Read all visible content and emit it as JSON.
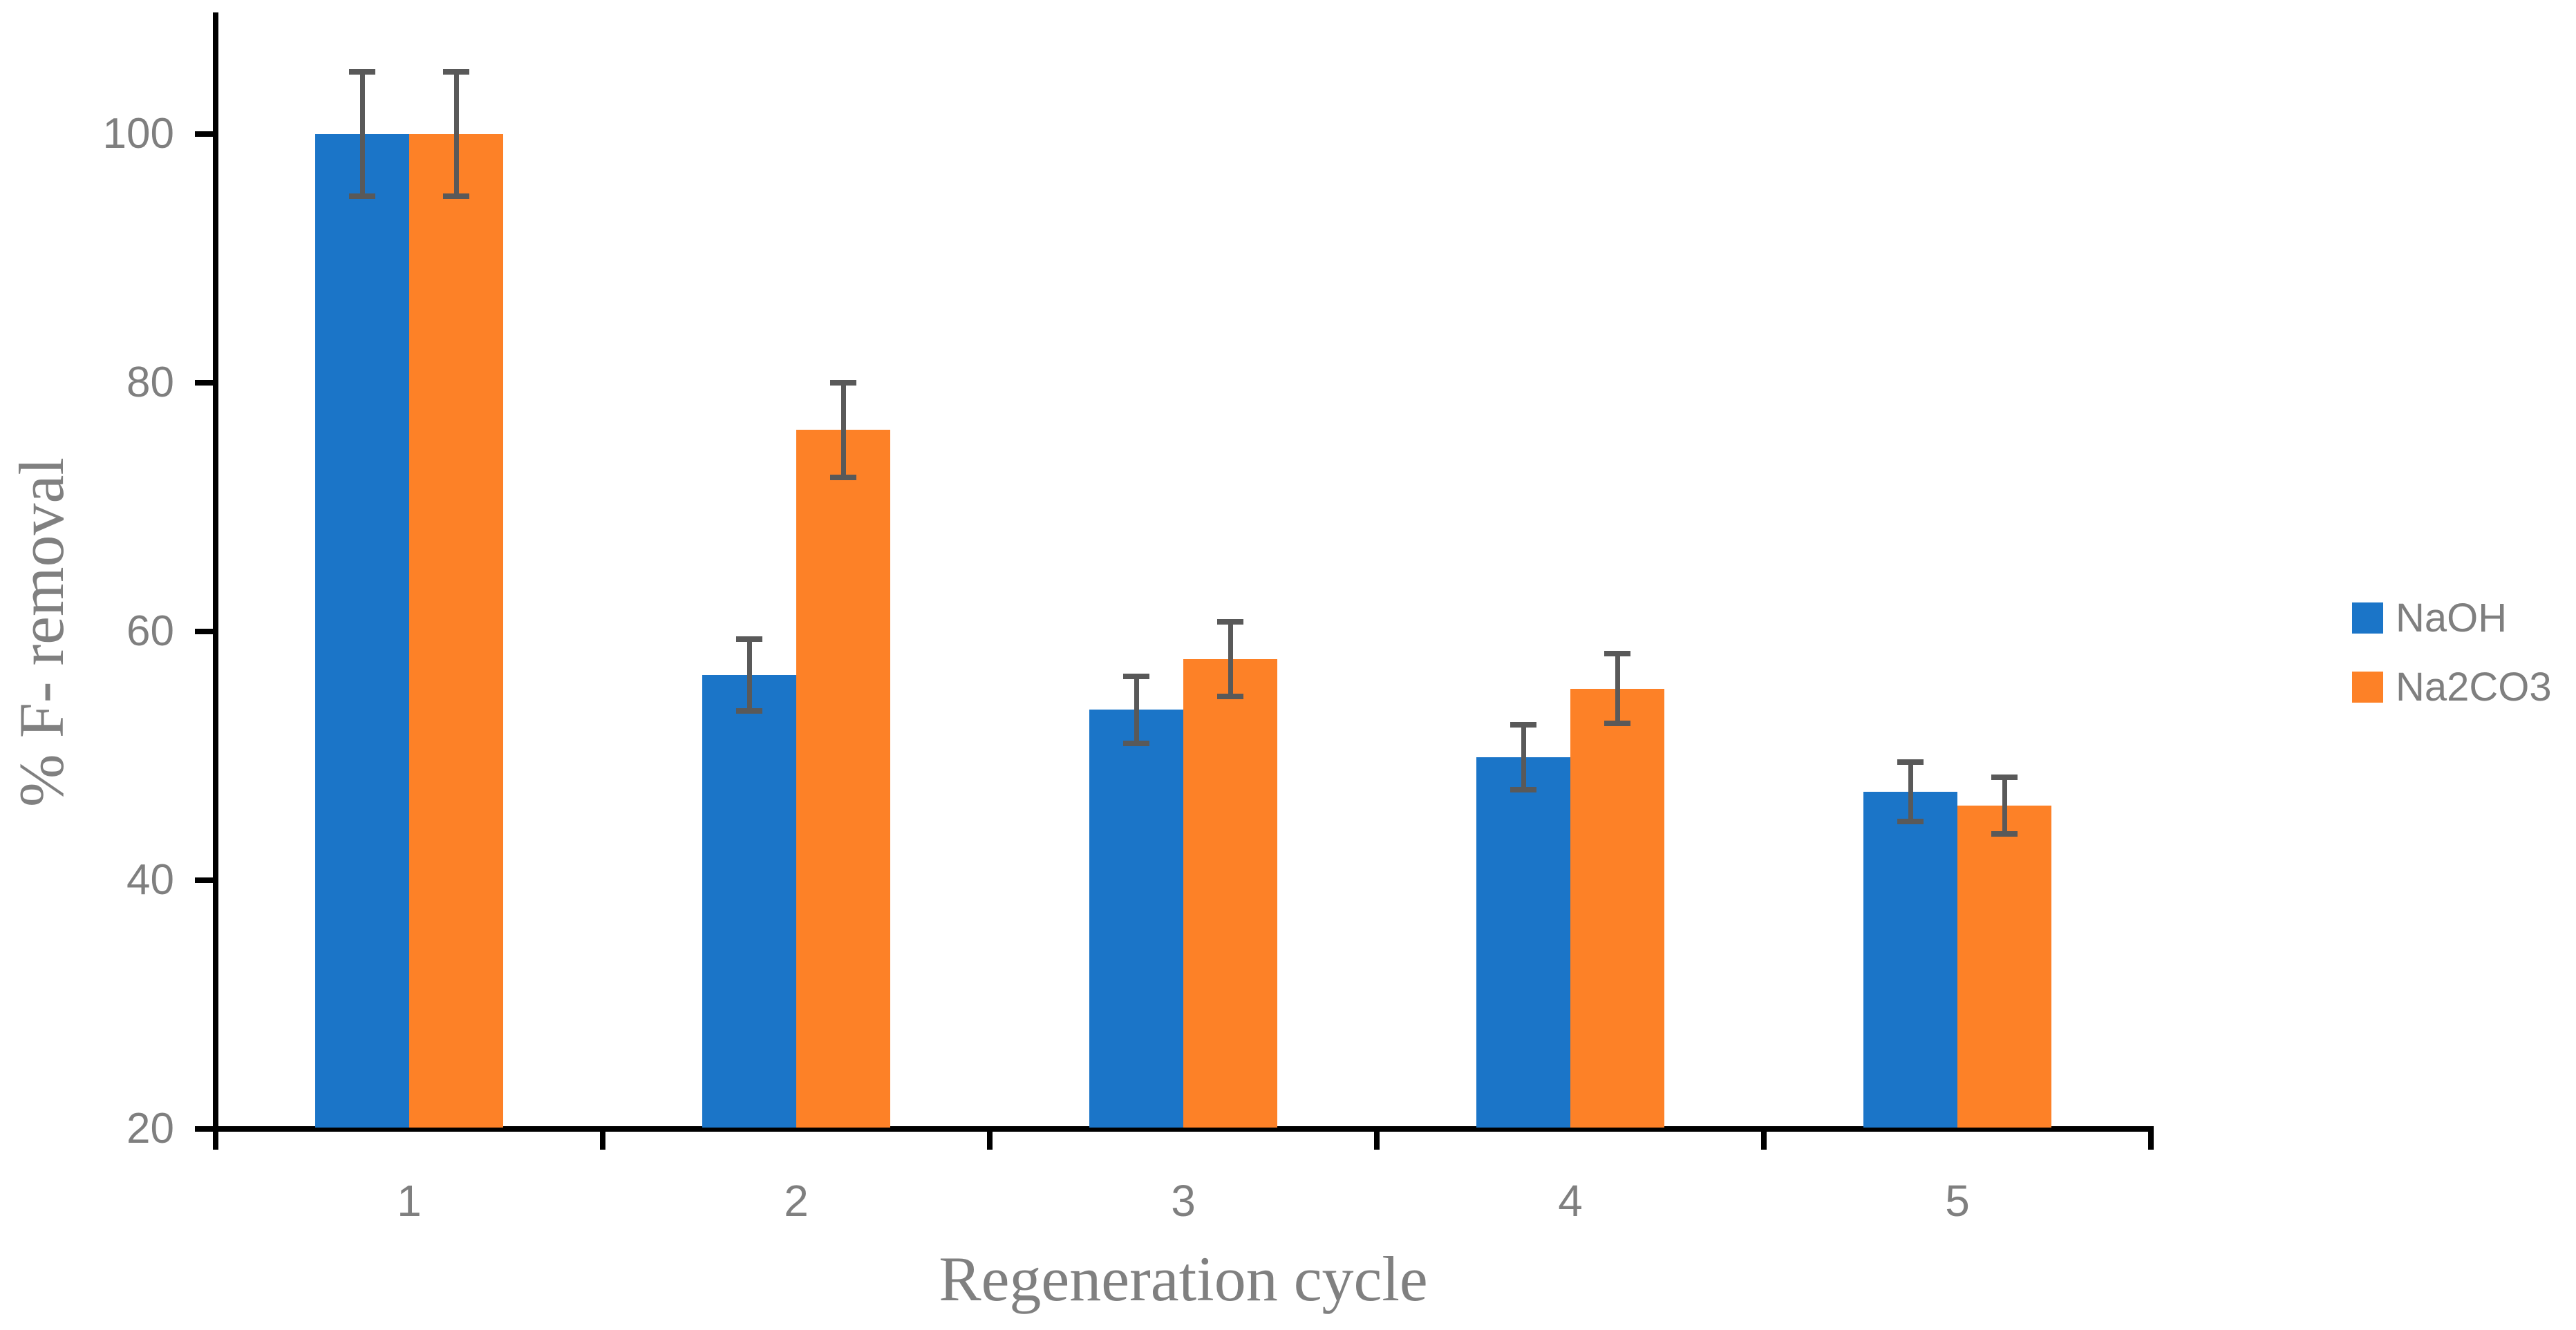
{
  "chart_data": {
    "type": "bar",
    "title": "",
    "xlabel": "Regeneration cycle",
    "ylabel": "% F- removal",
    "categories": [
      "1",
      "2",
      "3",
      "4",
      "5"
    ],
    "series": [
      {
        "name": "NaOH",
        "color": "#1B75C8",
        "values": [
          100,
          56.5,
          53.7,
          49.9,
          47.1
        ],
        "error": [
          5.0,
          2.9,
          2.7,
          2.6,
          2.4
        ]
      },
      {
        "name": "Na2CO3",
        "color": "#FD8127",
        "values": [
          100,
          76.2,
          57.8,
          55.4,
          46.0
        ],
        "error": [
          5.0,
          3.8,
          3.0,
          2.8,
          2.3
        ]
      }
    ],
    "y_ticks": [
      20,
      40,
      60,
      80,
      100
    ],
    "ylim": [
      20,
      110
    ],
    "grid": false,
    "legend_position": "right",
    "error_bar_color": "#595959",
    "axis_color": "#000000",
    "tick_label_color": "#7F7F7F",
    "axis_title_color": "#808080",
    "background_color": "#FFFFFF"
  }
}
